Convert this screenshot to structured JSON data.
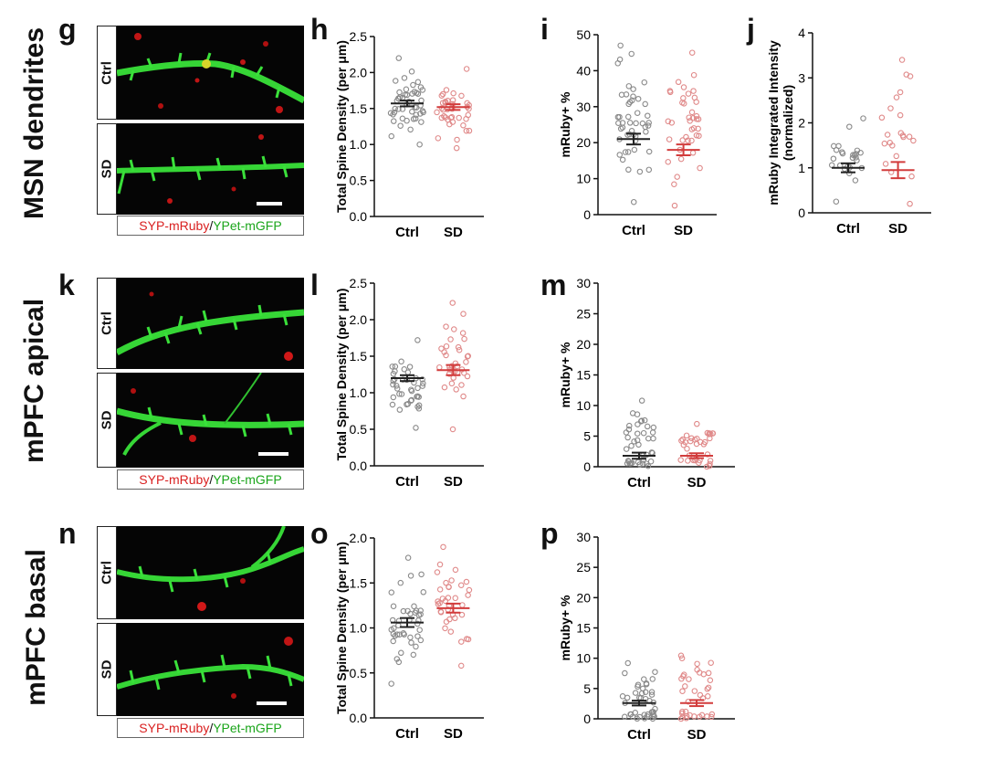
{
  "rows": [
    {
      "label": "MSN dendrites",
      "panel": "g",
      "ctrl_tag": "Ctrl",
      "sd_tag": "SD"
    },
    {
      "label": "mPFC apical",
      "panel": "k",
      "ctrl_tag": "Ctrl",
      "sd_tag": "SD"
    },
    {
      "label": "mPFC basal",
      "panel": "n",
      "ctrl_tag": "Ctrl",
      "sd_tag": "SD"
    }
  ],
  "caption": {
    "red": "SYP-mRuby",
    "sep": "/",
    "green": "YPet-mGFP"
  },
  "colors": {
    "ctrl": "#8a8a8a",
    "sd": "#e08a8a",
    "ctrl_mean": "#222222",
    "sd_mean": "#d23c3c",
    "dendrite": "#36d636",
    "puncta": "#d01818"
  },
  "chart_data": [
    {
      "panel": "h",
      "type": "scatter",
      "ylabel": "Total Spine Density (per  μm)",
      "categories": [
        "Ctrl",
        "SD"
      ],
      "ylim": [
        0,
        2.5
      ],
      "yticks": [
        "0.0",
        "0.5",
        "1.0",
        "1.5",
        "2.0",
        "2.5"
      ],
      "series": [
        {
          "name": "Ctrl",
          "n": 48,
          "mean": 1.57,
          "sem": 0.04,
          "min": 1.0,
          "max": 2.2
        },
        {
          "name": "SD",
          "n": 40,
          "mean": 1.52,
          "sem": 0.04,
          "min": 0.95,
          "max": 2.05
        }
      ]
    },
    {
      "panel": "i",
      "type": "scatter",
      "ylabel": "mRuby+ %",
      "categories": [
        "Ctrl",
        "SD"
      ],
      "ylim": [
        0,
        50
      ],
      "yticks": [
        "0",
        "10",
        "20",
        "30",
        "40",
        "50"
      ],
      "series": [
        {
          "name": "Ctrl",
          "n": 48,
          "mean": 21.0,
          "sem": 1.5,
          "min": 3.5,
          "max": 47
        },
        {
          "name": "SD",
          "n": 40,
          "mean": 18.0,
          "sem": 1.5,
          "min": 2.5,
          "max": 45
        }
      ]
    },
    {
      "panel": "j",
      "type": "scatter",
      "ylabel": "mRuby Integrated Intensity (normalized)",
      "categories": [
        "Ctrl",
        "SD"
      ],
      "ylim": [
        0,
        4
      ],
      "yticks": [
        "0",
        "1",
        "2",
        "3",
        "4"
      ],
      "series": [
        {
          "name": "Ctrl",
          "n": 25,
          "mean": 1.0,
          "sem": 0.1,
          "min": 0.25,
          "max": 2.1
        },
        {
          "name": "SD",
          "n": 22,
          "mean": 0.95,
          "sem": 0.18,
          "min": 0.2,
          "max": 3.4
        }
      ]
    },
    {
      "panel": "l",
      "type": "scatter",
      "ylabel": "Total Spine Density (per  μm)",
      "categories": [
        "Ctrl",
        "SD"
      ],
      "ylim": [
        0,
        2.5
      ],
      "yticks": [
        "0.0",
        "0.5",
        "1.0",
        "1.5",
        "2.0",
        "2.5"
      ],
      "series": [
        {
          "name": "Ctrl",
          "n": 40,
          "mean": 1.2,
          "sem": 0.04,
          "min": 0.52,
          "max": 1.72
        },
        {
          "name": "SD",
          "n": 36,
          "mean": 1.31,
          "sem": 0.07,
          "min": 0.5,
          "max": 2.23
        }
      ]
    },
    {
      "panel": "m",
      "type": "scatter",
      "ylabel": "mRuby+ %",
      "categories": [
        "Ctrl",
        "SD"
      ],
      "ylim": [
        0,
        30
      ],
      "yticks": [
        "0",
        "5",
        "10",
        "15",
        "20",
        "25",
        "30"
      ],
      "series": [
        {
          "name": "Ctrl",
          "n": 40,
          "mean": 1.8,
          "sem": 0.5,
          "min": 0,
          "max": 10.8
        },
        {
          "name": "SD",
          "n": 36,
          "mean": 1.8,
          "sem": 0.4,
          "min": 0,
          "max": 8.0
        }
      ]
    },
    {
      "panel": "o",
      "type": "scatter",
      "ylabel": "Total Spine Density (per  μm)",
      "categories": [
        "Ctrl",
        "SD"
      ],
      "ylim": [
        0,
        2.0
      ],
      "yticks": [
        "0.0",
        "0.5",
        "1.0",
        "1.5",
        "2.0"
      ],
      "series": [
        {
          "name": "Ctrl",
          "n": 42,
          "mean": 1.06,
          "sem": 0.05,
          "min": 0.38,
          "max": 1.78
        },
        {
          "name": "SD",
          "n": 36,
          "mean": 1.22,
          "sem": 0.05,
          "min": 0.58,
          "max": 1.9
        }
      ]
    },
    {
      "panel": "p",
      "type": "scatter",
      "ylabel": "mRuby+ %",
      "categories": [
        "Ctrl",
        "SD"
      ],
      "ylim": [
        0,
        30
      ],
      "yticks": [
        "0",
        "5",
        "10",
        "15",
        "20",
        "25",
        "30"
      ],
      "series": [
        {
          "name": "Ctrl",
          "n": 42,
          "mean": 2.6,
          "sem": 0.4,
          "min": 0,
          "max": 9.2
        },
        {
          "name": "SD",
          "n": 36,
          "mean": 2.6,
          "sem": 0.5,
          "min": 0,
          "max": 12.5
        }
      ]
    }
  ]
}
